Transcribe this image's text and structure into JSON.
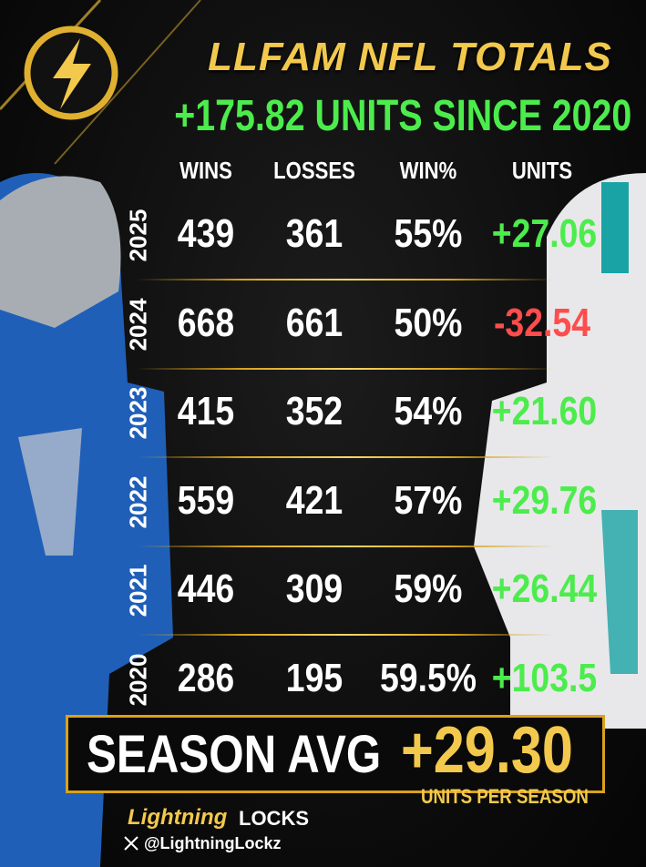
{
  "header": {
    "title": "LLFAM NFL TOTALS",
    "subtitle": "+175.82 UNITS SINCE 2020"
  },
  "table": {
    "columns": [
      "WINS",
      "LOSSES",
      "WIN%",
      "UNITS"
    ],
    "rows": [
      {
        "year": "2025",
        "cells": [
          "439",
          "361",
          "55%",
          "+27.06"
        ]
      },
      {
        "year": "2024",
        "cells": [
          "668",
          "661",
          "50%",
          "-32.54"
        ]
      },
      {
        "year": "2023",
        "cells": [
          "415",
          "352",
          "54%",
          "+21.60"
        ]
      },
      {
        "year": "2022",
        "cells": [
          "559",
          "421",
          "57%",
          "+29.76"
        ]
      },
      {
        "year": "2021",
        "cells": [
          "446",
          "309",
          "59%",
          "+26.44"
        ]
      },
      {
        "year": "2020",
        "cells": [
          "286",
          "195",
          "59.5%",
          "+103.5"
        ]
      }
    ]
  },
  "summary": {
    "label": "SEASON AVG",
    "value": "+29.30",
    "caption": "UNITS PER SEASON"
  },
  "footer": {
    "brand_1": "Lightning",
    "brand_2": "LOCKS",
    "handle": "@LightningLockz"
  }
}
